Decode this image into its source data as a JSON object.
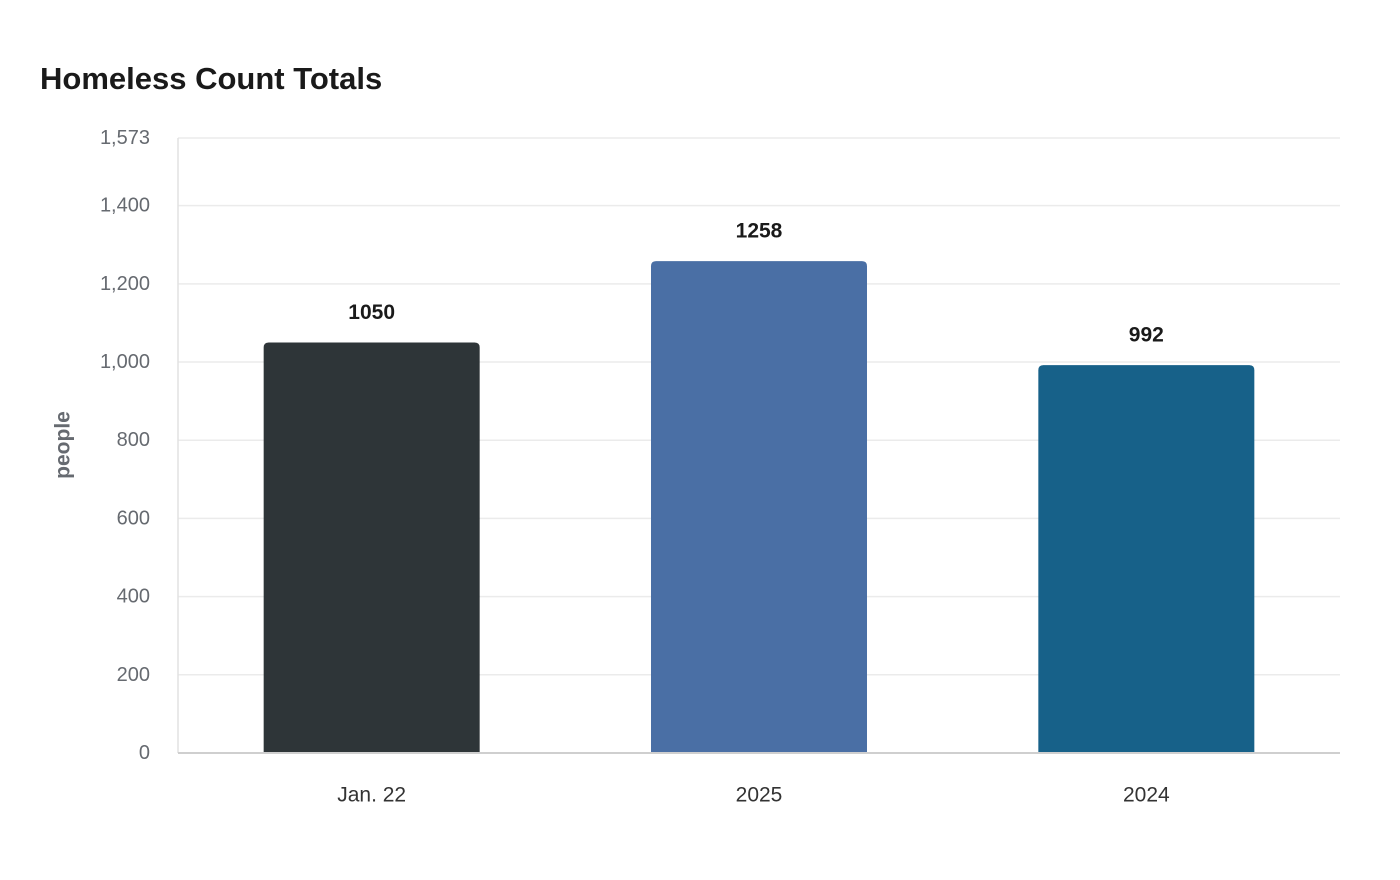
{
  "chart_data": {
    "type": "bar",
    "title": "Homeless Count Totals",
    "ylabel": "people",
    "xlabel": "",
    "categories": [
      "Jan. 22",
      "2025",
      "2024"
    ],
    "values": [
      1050,
      1258,
      992
    ],
    "value_labels": [
      "1050",
      "1258",
      "992"
    ],
    "bar_colors": [
      "#2e3538",
      "#4a6fa5",
      "#176189"
    ],
    "ylim": [
      0,
      1573
    ],
    "yticks": [
      0,
      200,
      400,
      600,
      800,
      1000,
      1200,
      1400,
      1573
    ],
    "ytick_labels": [
      "0",
      "200",
      "400",
      "600",
      "800",
      "1,000",
      "1,200",
      "1,400",
      "1,573"
    ],
    "grid": true,
    "legend": "none"
  }
}
